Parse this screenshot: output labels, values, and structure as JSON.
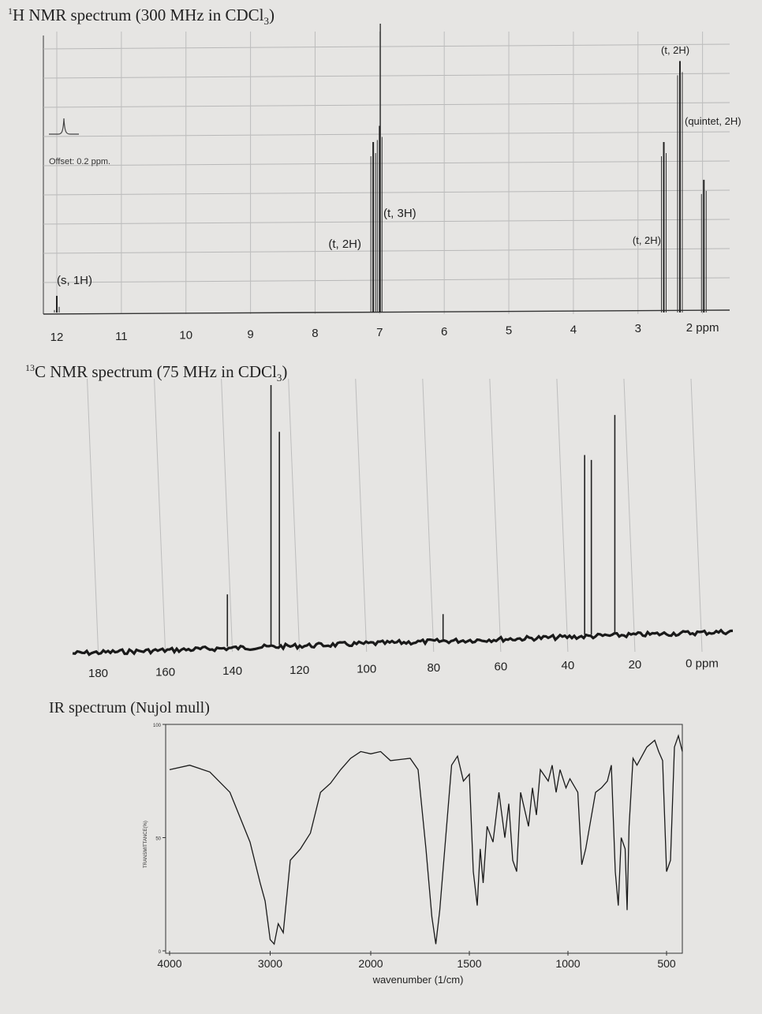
{
  "chart_data": [
    {
      "type": "line",
      "title_sup": "1",
      "title_rest": "H NMR spectrum (300 MHz in CDCl",
      "title_sub": "3",
      "title_close": ")",
      "xlabel": "",
      "ylabel": "",
      "x_unit": "ppm",
      "xlim": [
        12,
        1.8
      ],
      "x_reversed": true,
      "x_ticks": [
        12,
        11,
        10,
        9,
        8,
        7,
        6,
        5,
        4,
        3,
        2
      ],
      "grid": true,
      "offset_label": "Offset: 0.2 ppm.",
      "peaks": [
        {
          "x": 12.0,
          "height": 0.05,
          "label": "(s, 1H)"
        },
        {
          "x": 7.1,
          "height": 0.62,
          "label": "(t, 2H)"
        },
        {
          "x": 7.0,
          "height": 0.68,
          "label": "(t, 3H)"
        },
        {
          "x": 2.6,
          "height": 0.62,
          "label": "(t, 2H)"
        },
        {
          "x": 2.35,
          "height": 0.92,
          "label": "(t, 2H)"
        },
        {
          "x": 1.98,
          "height": 0.48,
          "label": "(quintet, 2H)"
        }
      ]
    },
    {
      "type": "line",
      "title_sup": "13",
      "title_rest": "C NMR spectrum (75 MHz in CDCl",
      "title_sub": "3",
      "title_close": ")",
      "xlabel": "",
      "ylabel": "",
      "x_unit": "ppm",
      "xlim": [
        190,
        0
      ],
      "x_reversed": true,
      "x_ticks": [
        180,
        160,
        140,
        120,
        100,
        80,
        60,
        40,
        20,
        0
      ],
      "grid": true,
      "peaks": [
        {
          "x": 180.0,
          "height": 0.0
        },
        {
          "x": 141.5,
          "height": 0.2
        },
        {
          "x": 128.5,
          "height": 1.0
        },
        {
          "x": 126.0,
          "height": 0.82
        },
        {
          "x": 77.2,
          "height": 0.1
        },
        {
          "x": 35.0,
          "height": 0.72
        },
        {
          "x": 33.0,
          "height": 0.7
        },
        {
          "x": 26.0,
          "height": 0.88
        }
      ]
    },
    {
      "type": "line",
      "title": "IR spectrum (Nujol mull)",
      "xlabel": "wavenumber (1/cm)",
      "ylabel": "TRANSMITTANCE(%)",
      "xlim": [
        4000,
        400
      ],
      "x_reversed": true,
      "ylim": [
        0,
        100
      ],
      "x_ticks": [
        4000,
        3000,
        2000,
        1500,
        1000,
        500
      ],
      "y_ticks": [
        0,
        50,
        100
      ],
      "points": [
        [
          4000,
          80
        ],
        [
          3800,
          82
        ],
        [
          3600,
          79
        ],
        [
          3400,
          70
        ],
        [
          3200,
          48
        ],
        [
          3100,
          30
        ],
        [
          3050,
          22
        ],
        [
          3000,
          5
        ],
        [
          2960,
          3
        ],
        [
          2920,
          12
        ],
        [
          2870,
          8
        ],
        [
          2800,
          40
        ],
        [
          2700,
          45
        ],
        [
          2600,
          52
        ],
        [
          2500,
          70
        ],
        [
          2400,
          74
        ],
        [
          2300,
          80
        ],
        [
          2200,
          85
        ],
        [
          2100,
          88
        ],
        [
          2000,
          87
        ],
        [
          1950,
          88
        ],
        [
          1900,
          84
        ],
        [
          1800,
          85
        ],
        [
          1760,
          80
        ],
        [
          1720,
          45
        ],
        [
          1690,
          15
        ],
        [
          1670,
          3
        ],
        [
          1650,
          18
        ],
        [
          1620,
          50
        ],
        [
          1590,
          82
        ],
        [
          1560,
          86
        ],
        [
          1530,
          75
        ],
        [
          1500,
          78
        ],
        [
          1480,
          35
        ],
        [
          1460,
          20
        ],
        [
          1445,
          45
        ],
        [
          1430,
          30
        ],
        [
          1410,
          55
        ],
        [
          1380,
          48
        ],
        [
          1350,
          70
        ],
        [
          1320,
          50
        ],
        [
          1300,
          65
        ],
        [
          1280,
          40
        ],
        [
          1260,
          35
        ],
        [
          1240,
          70
        ],
        [
          1200,
          55
        ],
        [
          1180,
          72
        ],
        [
          1160,
          60
        ],
        [
          1140,
          80
        ],
        [
          1100,
          75
        ],
        [
          1080,
          82
        ],
        [
          1060,
          70
        ],
        [
          1040,
          80
        ],
        [
          1010,
          72
        ],
        [
          990,
          76
        ],
        [
          950,
          70
        ],
        [
          930,
          38
        ],
        [
          910,
          45
        ],
        [
          890,
          55
        ],
        [
          860,
          70
        ],
        [
          830,
          72
        ],
        [
          800,
          75
        ],
        [
          780,
          82
        ],
        [
          760,
          35
        ],
        [
          745,
          20
        ],
        [
          730,
          50
        ],
        [
          710,
          45
        ],
        [
          700,
          18
        ],
        [
          690,
          55
        ],
        [
          670,
          85
        ],
        [
          650,
          82
        ],
        [
          600,
          90
        ],
        [
          560,
          93
        ],
        [
          540,
          88
        ],
        [
          520,
          84
        ],
        [
          500,
          35
        ],
        [
          480,
          40
        ],
        [
          460,
          90
        ],
        [
          440,
          95
        ],
        [
          420,
          88
        ]
      ]
    }
  ]
}
